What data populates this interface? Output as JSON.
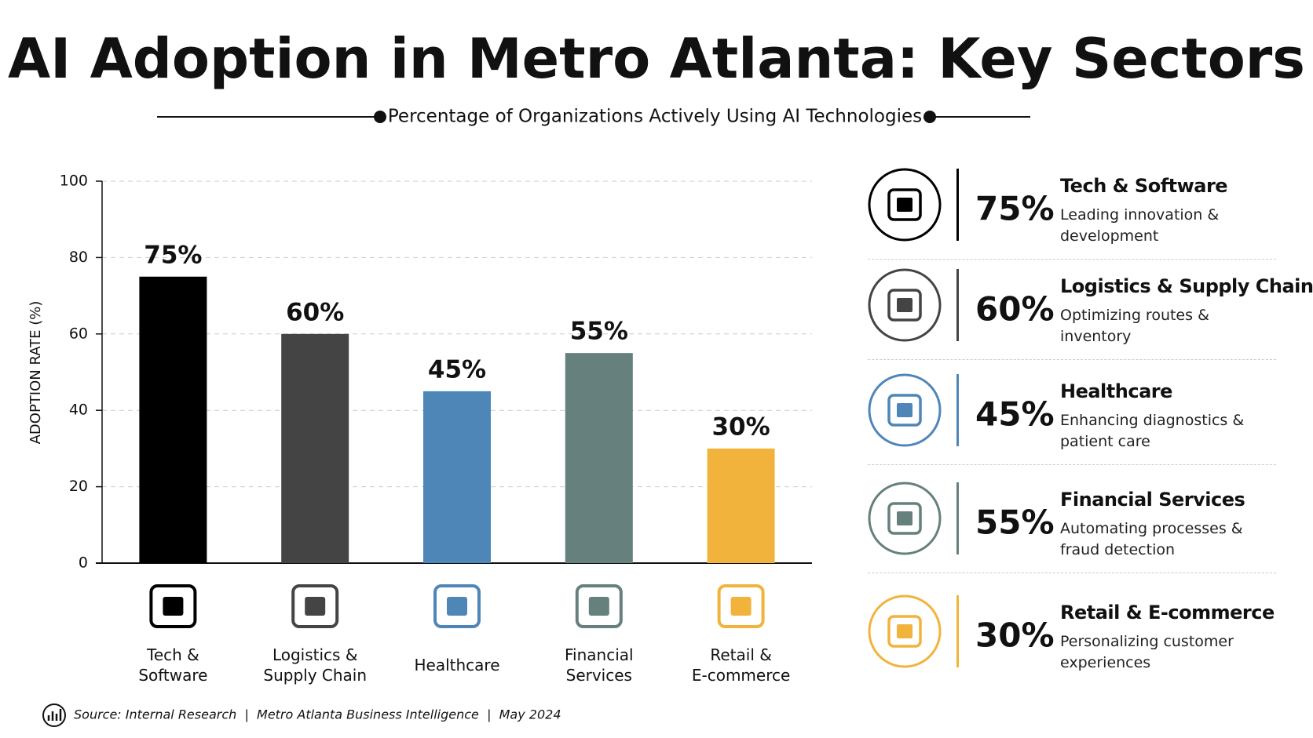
{
  "chart_data": {
    "type": "bar",
    "title": "AI Adoption in Metro Atlanta: Key Sectors",
    "subtitle": "Percentage of Organizations Actively Using AI Technologies",
    "y_label": "ADOPTION RATE (%)",
    "categories": [
      "Tech & Software",
      "Logistics & Supply Chain",
      "Healthcare",
      "Financial Services",
      "Retail & E-commerce"
    ],
    "values": [
      75,
      60,
      45,
      55,
      30
    ],
    "value_labels": [
      "75%",
      "60%",
      "45%",
      "55%",
      "30%"
    ],
    "colors": [
      "#000000",
      "#444444",
      "#4f86b8",
      "#65807d",
      "#f2b33d"
    ],
    "ylim": [
      0,
      100
    ],
    "yticks": [
      0,
      20,
      40,
      60,
      80,
      100
    ],
    "grid": true
  },
  "side_panel": {
    "descriptions": [
      "Leading innovation & development",
      "Optimizing routes & inventory",
      "Enhancing diagnostics & patient care",
      "Automating processes & fraud detection",
      "Personalizing customer experiences"
    ]
  },
  "footer": {
    "source": "Source: Internal Research  |  Metro Atlanta Business Intelligence  |  May 2024"
  }
}
